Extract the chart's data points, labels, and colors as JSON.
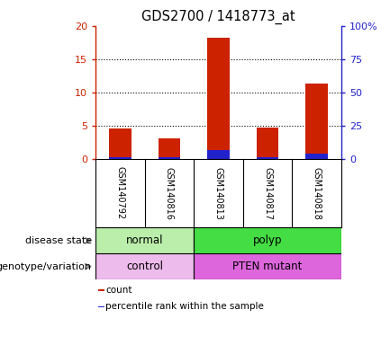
{
  "title": "GDS2700 / 1418773_at",
  "samples": [
    "GSM140792",
    "GSM140816",
    "GSM140813",
    "GSM140817",
    "GSM140818"
  ],
  "count_values": [
    4.5,
    3.0,
    18.2,
    4.7,
    11.3
  ],
  "percentile_values": [
    1.4,
    1.3,
    6.3,
    1.3,
    3.8
  ],
  "ylim_left": [
    0,
    20
  ],
  "ylim_right": [
    0,
    100
  ],
  "yticks_left": [
    0,
    5,
    10,
    15,
    20
  ],
  "ytick_labels_left": [
    "0",
    "5",
    "10",
    "15",
    "20"
  ],
  "yticks_right": [
    0,
    25,
    50,
    75,
    100
  ],
  "ytick_labels_right": [
    "0",
    "25",
    "50",
    "75",
    "100%"
  ],
  "bar_color": "#cc2200",
  "percentile_color": "#2222cc",
  "bar_width": 0.45,
  "disease_state_groups": [
    {
      "label": "normal",
      "span": [
        0,
        2
      ],
      "color": "#bbeeaa"
    },
    {
      "label": "polyp",
      "span": [
        2,
        5
      ],
      "color": "#44dd44"
    }
  ],
  "genotype_groups": [
    {
      "label": "control",
      "span": [
        0,
        2
      ],
      "color": "#eebbed"
    },
    {
      "label": "PTEN mutant",
      "span": [
        2,
        5
      ],
      "color": "#dd66dd"
    }
  ],
  "row_label_disease": "disease state",
  "row_label_geno": "genotype/variation",
  "legend_count_label": "count",
  "legend_pct_label": "percentile rank within the sample",
  "background_color": "#ffffff",
  "sample_area_bg": "#cccccc",
  "gridline_color": "black"
}
